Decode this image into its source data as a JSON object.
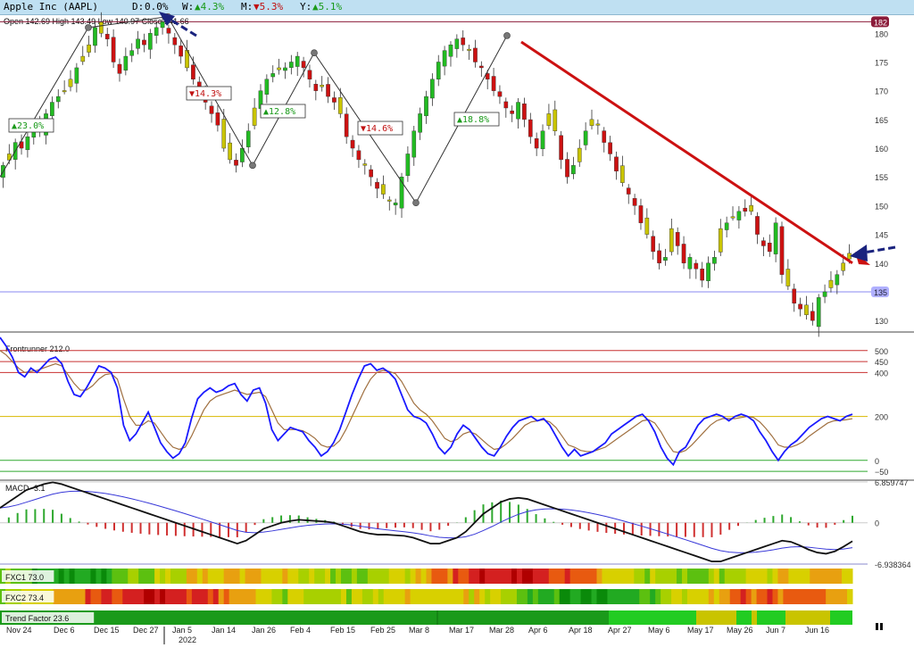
{
  "header": {
    "title": "Apple Inc (AAPL)",
    "day_label": "D:",
    "day_value": "0.0%",
    "week_label": "W:",
    "week_value": "▲4.3%",
    "month_label": "M:",
    "month_value": "▼5.3%",
    "year_label": "Y:",
    "year_value": "▲5.1%"
  },
  "ohlc": {
    "open_label": "Open",
    "open": "142.69",
    "high_label": "High",
    "high": "143.49",
    "low_label": "Low",
    "low": "140.97",
    "close_label": "Close",
    "close": "141.66"
  },
  "colors": {
    "up": "#22bb22",
    "down": "#cc1111",
    "neutral": "#c9c400",
    "price_line": "#1a1aff",
    "signal_line": "#a07040",
    "trend_arrow": "#cc1111",
    "callout_arrow": "#1a237e"
  },
  "chart_data": [
    {
      "type": "candlestick",
      "panel": "price",
      "ylim": [
        128,
        183
      ],
      "yticks": [
        130,
        135,
        140,
        145,
        150,
        155,
        160,
        165,
        170,
        175,
        180
      ],
      "resistance_level": 182,
      "support_level": 135,
      "resistance_label": "182",
      "support_label": "135",
      "swing_points": [
        {
          "date": "Nov 15",
          "value": 155
        },
        {
          "date": "Dec 13",
          "value": 181
        },
        {
          "date": "Jan 4",
          "value": 182.9
        },
        {
          "date": "Jan 27",
          "value": 157
        },
        {
          "date": "Feb 10",
          "value": 176.6
        },
        {
          "date": "Mar 8",
          "value": 150.5
        },
        {
          "date": "Mar 29",
          "value": 179.6
        }
      ],
      "swing_labels": [
        {
          "text": "▲23.0%",
          "dir": "up"
        },
        {
          "text": "▼14.3%",
          "dir": "down"
        },
        {
          "text": "▲12.8%",
          "dir": "up"
        },
        {
          "text": "▼14.6%",
          "dir": "down"
        },
        {
          "text": "▲18.8%",
          "dir": "up"
        }
      ],
      "trendline": [
        {
          "date": "Mar 31",
          "value": 178.5
        },
        {
          "date": "Jun 24",
          "value": 140
        }
      ],
      "closes": [
        157,
        159,
        161,
        160,
        162,
        164,
        163,
        166,
        168,
        169,
        170,
        172,
        174,
        176,
        178,
        181,
        180,
        179,
        175,
        173,
        176,
        177,
        179,
        178,
        180,
        181,
        182,
        180,
        178,
        176,
        174,
        172,
        170,
        168,
        166,
        164,
        160,
        158,
        157,
        160,
        163,
        167,
        170,
        172,
        173,
        174,
        174,
        175,
        176,
        174,
        172,
        170,
        171,
        169,
        168,
        166,
        162,
        160,
        158,
        157,
        155,
        153,
        152,
        151,
        150.5,
        155,
        159,
        163,
        166,
        169,
        172,
        175,
        177,
        178,
        179,
        178,
        177,
        175,
        174,
        172,
        170,
        169,
        167,
        166,
        168,
        165,
        162,
        160,
        163,
        166,
        163,
        158,
        155,
        157,
        160,
        163,
        165,
        164,
        161,
        159,
        156,
        154,
        152,
        150,
        147,
        145,
        142,
        140,
        141,
        146,
        143,
        140,
        141,
        139,
        137,
        140,
        141,
        146,
        147,
        148,
        149,
        149,
        149,
        145,
        143,
        142,
        147,
        138,
        136,
        133,
        132,
        131,
        130,
        134,
        135,
        137,
        138,
        140,
        141.7
      ],
      "dates_labels": [
        "Nov 24",
        "Dec 6",
        "Dec 15",
        "Dec 27",
        "Jan 5",
        "Jan 14",
        "Jan 26",
        "Feb 4",
        "Feb 15",
        "Feb 25",
        "Mar 8",
        "Mar 17",
        "Mar 28",
        "Apr 6",
        "Apr 18",
        "Apr 27",
        "May 6",
        "May 17",
        "May 26",
        "Jun 7",
        "Jun 16"
      ],
      "year_label": "2022"
    },
    {
      "type": "line",
      "panel": "oscillator",
      "title": "Frontrunner 212.0",
      "ylim": [
        -70,
        560
      ],
      "levels": [
        500,
        450,
        400,
        200,
        0,
        -50
      ],
      "level_labels": [
        "500",
        "450",
        "400",
        "200",
        "0",
        "−50"
      ],
      "series": [
        {
          "values": [
            560,
            520,
            470,
            400,
            380,
            420,
            400,
            430,
            460,
            470,
            440,
            360,
            300,
            290,
            330,
            380,
            430,
            420,
            400,
            330,
            160,
            90,
            120,
            170,
            220,
            150,
            80,
            40,
            10,
            30,
            80,
            190,
            280,
            310,
            330,
            310,
            320,
            340,
            350,
            300,
            270,
            320,
            330,
            260,
            140,
            90,
            120,
            150,
            140,
            130,
            90,
            60,
            20,
            40,
            80,
            140,
            220,
            300,
            370,
            430,
            440,
            410,
            420,
            400,
            370,
            300,
            230,
            200,
            190,
            170,
            120,
            60,
            30,
            60,
            120,
            160,
            140,
            100,
            60,
            30,
            20,
            60,
            110,
            150,
            180,
            190,
            200,
            180,
            190,
            160,
            110,
            60,
            20,
            50,
            20,
            30,
            40,
            60,
            80,
            120,
            140,
            160,
            180,
            200,
            210,
            180,
            130,
            60,
            10,
            -20,
            40,
            60,
            110,
            160,
            190,
            200,
            210,
            200,
            180,
            200,
            210,
            200,
            180,
            130,
            90,
            40,
            0,
            40,
            70,
            90,
            120,
            150,
            170,
            190,
            200,
            190,
            180,
            200,
            210
          ]
        },
        {
          "values": [
            500,
            480,
            450,
            420,
            400,
            405,
            410,
            420,
            430,
            440,
            430,
            390,
            350,
            320,
            320,
            340,
            370,
            390,
            395,
            370,
            280,
            200,
            160,
            160,
            180,
            170,
            130,
            90,
            60,
            50,
            60,
            110,
            170,
            230,
            270,
            290,
            300,
            310,
            320,
            310,
            300,
            305,
            310,
            290,
            230,
            170,
            140,
            140,
            140,
            135,
            120,
            100,
            70,
            60,
            65,
            90,
            140,
            200,
            260,
            320,
            370,
            400,
            410,
            405,
            395,
            360,
            310,
            260,
            230,
            210,
            180,
            140,
            100,
            85,
            95,
            120,
            130,
            120,
            95,
            70,
            50,
            55,
            75,
            100,
            130,
            160,
            175,
            180,
            185,
            175,
            150,
            110,
            70,
            60,
            45,
            40,
            40,
            50,
            60,
            80,
            100,
            120,
            140,
            160,
            180,
            185,
            170,
            130,
            80,
            40,
            35,
            45,
            70,
            100,
            130,
            160,
            180,
            190,
            190,
            190,
            195,
            200,
            195,
            175,
            145,
            110,
            70,
            60,
            60,
            70,
            85,
            110,
            130,
            150,
            170,
            180,
            182,
            185,
            190
          ]
        }
      ]
    },
    {
      "type": "line",
      "panel": "macd",
      "title": "MACD -3.1",
      "ylim": [
        -6.938364,
        6.859747
      ],
      "top_label": "6.859747",
      "zero_label": "0",
      "bottom_label": "-6.938364",
      "macd": [
        2.5,
        3.5,
        4.5,
        5.5,
        6.0,
        6.5,
        6.8,
        6.5,
        6.0,
        5.5,
        5.0,
        4.5,
        4.0,
        3.5,
        3.0,
        2.5,
        2.0,
        1.5,
        1.0,
        0.5,
        0.0,
        -0.5,
        -1.0,
        -1.5,
        -2.0,
        -2.5,
        -3.0,
        -3.5,
        -3.0,
        -2.0,
        -1.0,
        -0.5,
        0.0,
        0.3,
        0.5,
        0.4,
        0.3,
        0.2,
        0.0,
        -0.5,
        -1.0,
        -1.5,
        -1.8,
        -2.0,
        -2.0,
        -2.1,
        -2.2,
        -2.5,
        -3.0,
        -3.5,
        -3.5,
        -3.0,
        -2.5,
        -1.5,
        0.0,
        1.5,
        2.5,
        3.5,
        4.0,
        4.2,
        4.0,
        3.5,
        3.0,
        2.5,
        2.0,
        1.5,
        1.0,
        0.5,
        0.0,
        -0.5,
        -1.0,
        -1.5,
        -2.0,
        -2.5,
        -3.0,
        -3.5,
        -4.0,
        -4.5,
        -5.0,
        -5.5,
        -6.0,
        -6.5,
        -6.5,
        -6.0,
        -5.5,
        -5.0,
        -4.5,
        -4.0,
        -3.5,
        -3.0,
        -3.2,
        -3.8,
        -4.5,
        -5.0,
        -5.2,
        -4.8,
        -4.0,
        -3.1
      ]
    },
    {
      "type": "heatmap",
      "panel": "fxc1",
      "title": "FXC1 73.0"
    },
    {
      "type": "heatmap",
      "panel": "fxc2",
      "title": "FXC2 73.4"
    },
    {
      "type": "heatmap",
      "panel": "trend",
      "title": "Trend Factor 23.6"
    }
  ]
}
